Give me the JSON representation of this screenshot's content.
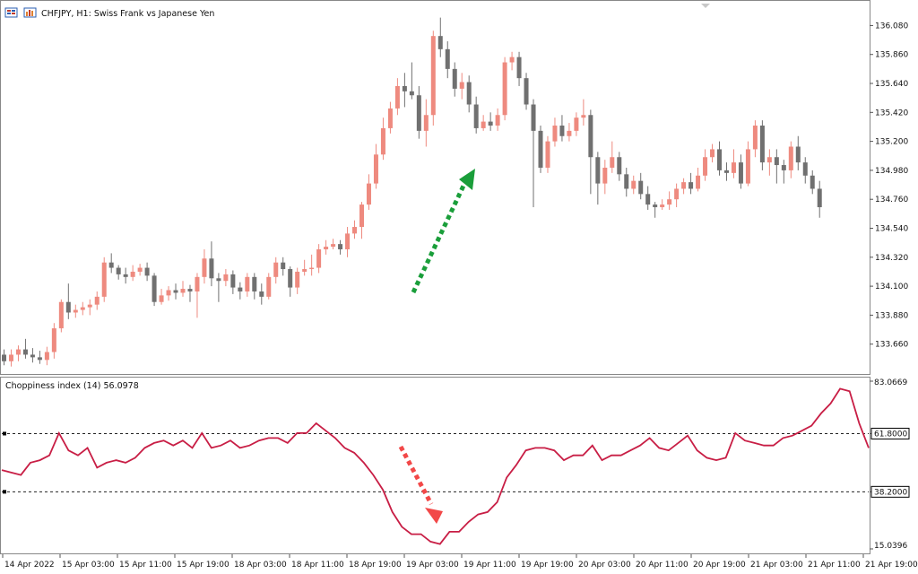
{
  "header": {
    "symbol_line": "CHFJPY, H1:  Swiss Frank vs Japanese Yen",
    "icons": [
      "chart-window-icon",
      "bars-icon"
    ]
  },
  "indicator": {
    "label": "Choppiness index (14) 56.0978"
  },
  "colors": {
    "bull": "#ee8a7f",
    "bear": "#707070",
    "chop_line": "#c81e45",
    "up_arrow": "#1a9e3a",
    "down_arrow": "#f24848"
  },
  "chart_data": [
    {
      "type": "candlestick",
      "title": "CHFJPY, H1:  Swiss Frank vs Japanese Yen",
      "ylim": [
        133.44,
        136.26
      ],
      "y_ticks": [
        "136.080",
        "135.860",
        "135.640",
        "135.420",
        "135.200",
        "134.980",
        "134.760",
        "134.540",
        "134.320",
        "134.100",
        "133.880",
        "133.660"
      ],
      "y_tick_values": [
        136.08,
        135.86,
        135.64,
        135.42,
        135.2,
        134.98,
        134.76,
        134.54,
        134.32,
        134.1,
        133.88,
        133.66
      ],
      "candles": [
        [
          133.58,
          133.53,
          133.62,
          133.5
        ],
        [
          133.53,
          133.58,
          133.62,
          133.49
        ],
        [
          133.58,
          133.62,
          133.65,
          133.53
        ],
        [
          133.62,
          133.58,
          133.7,
          133.55
        ],
        [
          133.58,
          133.56,
          133.63,
          133.52
        ],
        [
          133.56,
          133.54,
          133.61,
          133.51
        ],
        [
          133.54,
          133.6,
          133.64,
          133.5
        ],
        [
          133.6,
          133.78,
          133.82,
          133.55
        ],
        [
          133.78,
          133.98,
          134.0,
          133.75
        ],
        [
          133.98,
          133.9,
          134.12,
          133.85
        ],
        [
          133.9,
          133.92,
          133.96,
          133.86
        ],
        [
          133.92,
          133.94,
          133.98,
          133.88
        ],
        [
          133.94,
          133.96,
          134.0,
          133.88
        ],
        [
          133.96,
          134.02,
          134.06,
          133.92
        ],
        [
          134.02,
          134.28,
          134.32,
          133.98
        ],
        [
          134.28,
          134.24,
          134.35,
          134.2
        ],
        [
          134.24,
          134.19,
          134.26,
          134.15
        ],
        [
          134.19,
          134.17,
          134.24,
          134.12
        ],
        [
          134.17,
          134.21,
          134.26,
          134.14
        ],
        [
          134.21,
          134.24,
          134.27,
          134.18
        ],
        [
          134.24,
          134.18,
          134.28,
          134.14
        ],
        [
          134.18,
          133.98,
          134.2,
          133.95
        ],
        [
          133.98,
          134.03,
          134.08,
          133.96
        ],
        [
          134.03,
          134.07,
          134.1,
          133.99
        ],
        [
          134.07,
          134.05,
          134.12,
          134.0
        ],
        [
          134.05,
          134.08,
          134.14,
          134.02
        ],
        [
          134.08,
          134.06,
          134.11,
          133.98
        ],
        [
          134.06,
          134.17,
          134.2,
          133.86
        ],
        [
          134.17,
          134.31,
          134.38,
          134.12
        ],
        [
          134.31,
          134.16,
          134.44,
          134.1
        ],
        [
          134.16,
          134.14,
          134.2,
          133.98
        ],
        [
          134.14,
          134.19,
          134.23,
          134.1
        ],
        [
          134.19,
          134.09,
          134.22,
          134.04
        ],
        [
          134.09,
          134.06,
          134.13,
          134.0
        ],
        [
          134.06,
          134.17,
          134.2,
          134.02
        ],
        [
          134.17,
          134.06,
          134.2,
          134.0
        ],
        [
          134.06,
          134.02,
          134.12,
          133.96
        ],
        [
          134.02,
          134.17,
          134.2,
          134.0
        ],
        [
          134.17,
          134.28,
          134.32,
          134.12
        ],
        [
          134.28,
          134.23,
          134.32,
          134.18
        ],
        [
          134.23,
          134.09,
          134.25,
          134.02
        ],
        [
          134.09,
          134.21,
          134.24,
          134.04
        ],
        [
          134.21,
          134.23,
          134.3,
          134.18
        ],
        [
          134.23,
          134.24,
          134.34,
          134.18
        ],
        [
          134.24,
          134.38,
          134.42,
          134.2
        ],
        [
          134.38,
          134.4,
          134.45,
          134.34
        ],
        [
          134.4,
          134.42,
          134.46,
          134.38
        ],
        [
          134.42,
          134.38,
          134.45,
          134.34
        ],
        [
          134.38,
          134.5,
          134.55,
          134.32
        ],
        [
          134.5,
          134.55,
          134.6,
          134.46
        ],
        [
          134.55,
          134.72,
          134.74,
          134.46
        ],
        [
          134.72,
          134.88,
          134.95,
          134.68
        ],
        [
          134.88,
          135.1,
          135.18,
          134.84
        ],
        [
          135.1,
          135.3,
          135.38,
          135.06
        ],
        [
          135.3,
          135.45,
          135.5,
          135.26
        ],
        [
          135.45,
          135.62,
          135.68,
          135.4
        ],
        [
          135.62,
          135.58,
          135.72,
          135.46
        ],
        [
          135.58,
          135.55,
          135.8,
          135.52
        ],
        [
          135.55,
          135.28,
          135.62,
          135.22
        ],
        [
          135.28,
          135.4,
          135.52,
          135.16
        ],
        [
          135.4,
          136.0,
          136.04,
          135.32
        ],
        [
          136.0,
          135.9,
          136.14,
          135.84
        ],
        [
          135.9,
          135.75,
          135.96,
          135.68
        ],
        [
          135.75,
          135.6,
          135.8,
          135.54
        ],
        [
          135.6,
          135.65,
          135.72,
          135.52
        ],
        [
          135.65,
          135.48,
          135.7,
          135.42
        ],
        [
          135.48,
          135.3,
          135.54,
          135.26
        ],
        [
          135.3,
          135.35,
          135.4,
          135.28
        ],
        [
          135.35,
          135.32,
          135.42,
          135.28
        ],
        [
          135.32,
          135.4,
          135.45,
          135.28
        ],
        [
          135.4,
          135.8,
          135.84,
          135.36
        ],
        [
          135.8,
          135.84,
          135.88,
          135.74
        ],
        [
          135.84,
          135.68,
          135.88,
          135.62
        ],
        [
          135.68,
          135.48,
          135.72,
          135.44
        ],
        [
          135.48,
          135.28,
          135.52,
          134.7
        ],
        [
          135.28,
          135.0,
          135.32,
          134.96
        ],
        [
          135.0,
          135.2,
          135.24,
          134.96
        ],
        [
          135.2,
          135.32,
          135.38,
          135.16
        ],
        [
          135.32,
          135.24,
          135.4,
          135.2
        ],
        [
          135.24,
          135.28,
          135.34,
          135.2
        ],
        [
          135.28,
          135.38,
          135.42,
          135.24
        ],
        [
          135.38,
          135.4,
          135.52,
          135.32
        ],
        [
          135.4,
          135.08,
          135.44,
          134.8
        ],
        [
          135.08,
          134.88,
          135.12,
          134.72
        ],
        [
          134.88,
          135.0,
          135.06,
          134.8
        ],
        [
          135.0,
          135.08,
          135.2,
          134.96
        ],
        [
          135.08,
          134.95,
          135.12,
          134.9
        ],
        [
          134.95,
          134.84,
          135.0,
          134.78
        ],
        [
          134.84,
          134.9,
          134.94,
          134.8
        ],
        [
          134.9,
          134.8,
          134.96,
          134.76
        ],
        [
          134.8,
          134.72,
          134.86,
          134.68
        ],
        [
          134.72,
          134.7,
          134.74,
          134.62
        ],
        [
          134.7,
          134.72,
          134.76,
          134.68
        ],
        [
          134.72,
          134.76,
          134.82,
          134.68
        ],
        [
          134.76,
          134.84,
          134.88,
          134.7
        ],
        [
          134.84,
          134.89,
          134.92,
          134.8
        ],
        [
          134.89,
          134.84,
          134.96,
          134.8
        ],
        [
          134.84,
          134.94,
          135.0,
          134.82
        ],
        [
          134.94,
          135.08,
          135.14,
          134.9
        ],
        [
          135.08,
          135.14,
          135.18,
          135.04
        ],
        [
          135.14,
          134.98,
          135.2,
          134.94
        ],
        [
          134.98,
          134.96,
          135.04,
          134.9
        ],
        [
          134.96,
          135.04,
          135.14,
          134.92
        ],
        [
          135.04,
          134.88,
          135.1,
          134.84
        ],
        [
          134.88,
          135.14,
          135.2,
          134.86
        ],
        [
          135.14,
          135.32,
          135.36,
          135.08
        ],
        [
          135.32,
          135.04,
          135.36,
          134.98
        ],
        [
          135.04,
          135.08,
          135.14,
          134.94
        ],
        [
          135.08,
          135.02,
          135.14,
          134.88
        ],
        [
          135.02,
          134.98,
          135.06,
          134.88
        ],
        [
          134.98,
          135.16,
          135.2,
          134.92
        ],
        [
          135.16,
          135.04,
          135.24,
          134.98
        ],
        [
          135.04,
          134.94,
          135.08,
          134.88
        ],
        [
          134.94,
          134.84,
          134.98,
          134.8
        ],
        [
          134.84,
          134.7,
          134.9,
          134.62
        ]
      ]
    },
    {
      "type": "line",
      "title": "Choppiness index (14) 56.0978",
      "ylim": [
        15.0396,
        83.0669
      ],
      "y_ticks": [
        "83.0669",
        "61.8000",
        "38.2000",
        "15.0396"
      ],
      "levels": [
        61.8,
        38.2
      ],
      "level_labels": [
        "61.8000",
        "38.2000"
      ],
      "series": [
        {
          "values": [
            47,
            46,
            45,
            50,
            51,
            53,
            62,
            55,
            53,
            56,
            48,
            50,
            51,
            50,
            52,
            56,
            58,
            59,
            57,
            59,
            56,
            62,
            56,
            57,
            59,
            56,
            57,
            59,
            60,
            60,
            58,
            62,
            62,
            66,
            63,
            60,
            56,
            54,
            50,
            45,
            39,
            30,
            24,
            21,
            21,
            18,
            17,
            22,
            22,
            26,
            29,
            30,
            34,
            44,
            49,
            55,
            56,
            56,
            55,
            51,
            53,
            53,
            57,
            51,
            53,
            53,
            55,
            57,
            60,
            56,
            55,
            58,
            61,
            55,
            52,
            51,
            52,
            62,
            59,
            58,
            57,
            57,
            60,
            61,
            63,
            65,
            70,
            74,
            80,
            79,
            66,
            56
          ]
        }
      ]
    }
  ],
  "time_axis": {
    "labels": [
      "14 Apr 2022",
      "15 Apr 03:00",
      "15 Apr 11:00",
      "15 Apr 19:00",
      "18 Apr 03:00",
      "18 Apr 11:00",
      "18 Apr 19:00",
      "19 Apr 03:00",
      "19 Apr 11:00",
      "19 Apr 19:00",
      "20 Apr 03:00",
      "20 Apr 11:00",
      "20 Apr 19:00",
      "21 Apr 03:00",
      "21 Apr 11:00",
      "21 Apr 19:00"
    ]
  }
}
